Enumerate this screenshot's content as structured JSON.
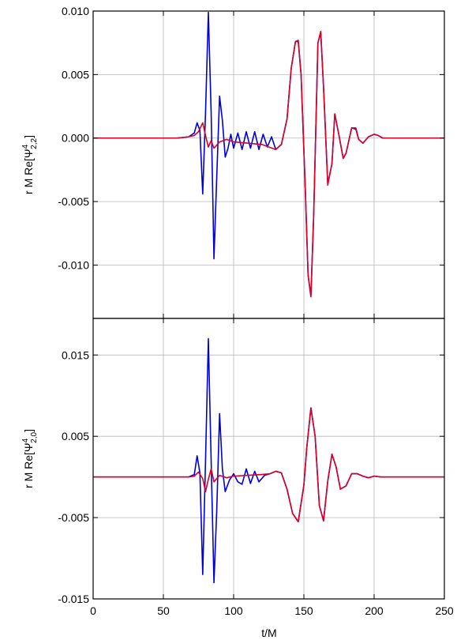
{
  "figure": {
    "xlabel": "t/M",
    "colors": {
      "blue_series": "#0000dd",
      "red_series": "#dd0022",
      "grid": "#b8b8b8",
      "axes": "#000000"
    }
  },
  "chart_data": [
    {
      "type": "line",
      "panel": "top",
      "ylabel": {
        "prefix": "r M Re[Ψ",
        "sup": "4",
        "sub": "2,2",
        "suffix": "]"
      },
      "xlim": [
        0,
        250
      ],
      "ylim": [
        -0.0142,
        0.01
      ],
      "xticks": [
        0,
        50,
        100,
        150,
        200,
        250
      ],
      "yticks": [
        0.01,
        0.005,
        0.0,
        -0.005,
        -0.01
      ],
      "ytick_labels": [
        "0.010",
        "0.005",
        "0.000",
        "-0.005",
        "-0.010"
      ],
      "grid": true,
      "series": [
        {
          "color": "#0000dd",
          "x": [
            0,
            60,
            68,
            72,
            74,
            76,
            78,
            80,
            82,
            84,
            86,
            88,
            90,
            92,
            94,
            96,
            98,
            100,
            103,
            106,
            109,
            112,
            115,
            118,
            121,
            124,
            127,
            130,
            134,
            138,
            141,
            144,
            146,
            148,
            151,
            153,
            155,
            157,
            160,
            162,
            164,
            167,
            170,
            172,
            175,
            178,
            180,
            184,
            187,
            189,
            192,
            196,
            200,
            203,
            206,
            210,
            215,
            220,
            230,
            250
          ],
          "y": [
            0,
            0,
            0.0001,
            0.0004,
            0.0012,
            0.0006,
            -0.0044,
            0.002,
            0.0099,
            0.002,
            -0.0095,
            -0.003,
            0.0033,
            0.0014,
            -0.0015,
            -0.0008,
            0.0003,
            -0.0008,
            0.0004,
            -0.0009,
            0.0005,
            -0.0008,
            0.0005,
            -0.0009,
            0.0003,
            -0.0007,
            0.0001,
            -0.0009,
            -0.0005,
            0.0015,
            0.0055,
            0.0076,
            0.0076,
            0.005,
            -0.004,
            -0.0108,
            -0.0124,
            -0.006,
            0.0075,
            0.0083,
            0.004,
            -0.0036,
            -0.002,
            0.0019,
            0.0002,
            -0.0016,
            -0.0012,
            0.0008,
            0.0007,
            -0.0001,
            -0.0004,
            0.0001,
            0.0003,
            0.0002,
            0,
            0,
            0,
            0,
            0,
            0
          ]
        },
        {
          "color": "#dd0022",
          "x": [
            0,
            60,
            68,
            72,
            75,
            78,
            80,
            82,
            84,
            86,
            90,
            95,
            100,
            110,
            120,
            125,
            130,
            134,
            138,
            141,
            144,
            146,
            148,
            151,
            153,
            155,
            157,
            160,
            162,
            164,
            167,
            170,
            172,
            175,
            178,
            180,
            184,
            187,
            189,
            192,
            196,
            200,
            203,
            206,
            210,
            215,
            220,
            230,
            250
          ],
          "y": [
            0,
            0,
            0.0001,
            0.0002,
            0.0005,
            0.0012,
            0.0002,
            -0.0007,
            -0.0002,
            -0.0008,
            -0.0003,
            -0.0001,
            -0.0003,
            -0.0004,
            -0.0005,
            -0.0007,
            -0.0009,
            -0.0005,
            0.0015,
            0.0055,
            0.0076,
            0.0077,
            0.005,
            -0.004,
            -0.0108,
            -0.0125,
            -0.006,
            0.0075,
            0.0084,
            0.004,
            -0.0037,
            -0.002,
            0.0019,
            0.0002,
            -0.0016,
            -0.0012,
            0.0008,
            0.0008,
            -0.0001,
            -0.0004,
            0.0001,
            0.0003,
            0.0002,
            0,
            0,
            0,
            0,
            0,
            0
          ]
        }
      ]
    },
    {
      "type": "line",
      "panel": "bottom",
      "ylabel": {
        "prefix": "r M Re[Ψ",
        "sup": "4",
        "sub": "2,0",
        "suffix": "]"
      },
      "xlim": [
        0,
        250
      ],
      "ylim": [
        -0.015,
        0.0195
      ],
      "xticks": [
        0,
        50,
        100,
        150,
        200,
        250
      ],
      "xtick_labels": [
        "0",
        "50",
        "100",
        "150",
        "200",
        "250"
      ],
      "yticks": [
        0.015,
        0.005,
        -0.005,
        -0.015
      ],
      "ytick_labels": [
        "0.015",
        "0.005",
        "-0.005",
        "-0.015"
      ],
      "grid": true,
      "series": [
        {
          "color": "#0000dd",
          "x": [
            0,
            60,
            68,
            72,
            74,
            76,
            78,
            80,
            82,
            84,
            86,
            88,
            90,
            92,
            94,
            97,
            100,
            103,
            106,
            109,
            112,
            115,
            118,
            122,
            126,
            130,
            134,
            138,
            142,
            146,
            150,
            152,
            155,
            158,
            161,
            164,
            167,
            170,
            173,
            176,
            180,
            184,
            188,
            192,
            196,
            200,
            205,
            210,
            220,
            250
          ],
          "y": [
            0,
            0,
            0,
            0.0003,
            0.0026,
            0.0005,
            -0.012,
            0.002,
            0.017,
            0.002,
            -0.013,
            -0.004,
            0.0078,
            0.001,
            -0.0018,
            -0.0004,
            0.0004,
            -0.0006,
            -0.0009,
            0.001,
            -0.0008,
            0.0007,
            -0.0006,
            0.0002,
            0.0004,
            0.0007,
            0.0005,
            -0.0015,
            -0.0045,
            -0.0055,
            -0.001,
            0.0035,
            0.0085,
            0.005,
            -0.0035,
            -0.0054,
            -0.0005,
            0.0028,
            0.0012,
            -0.0015,
            -0.0011,
            0.0004,
            0.0004,
            0.0001,
            -0.0001,
            0.0001,
            0,
            0,
            0,
            0
          ]
        },
        {
          "color": "#dd0022",
          "x": [
            0,
            60,
            68,
            72,
            75,
            78,
            80,
            82,
            84,
            86,
            90,
            95,
            100,
            110,
            120,
            126,
            130,
            134,
            138,
            142,
            146,
            150,
            152,
            155,
            158,
            161,
            164,
            167,
            170,
            173,
            176,
            180,
            184,
            188,
            192,
            196,
            200,
            205,
            210,
            220,
            250
          ],
          "y": [
            0,
            0,
            0,
            0.0001,
            0.0006,
            -0.0002,
            -0.0018,
            -0.0003,
            0.001,
            -0.0006,
            0.0002,
            -0.0001,
            0.0001,
            0.0002,
            0.0003,
            0.0004,
            0.0007,
            0.0005,
            -0.0015,
            -0.0045,
            -0.0055,
            -0.001,
            0.0035,
            0.0085,
            0.005,
            -0.0035,
            -0.0054,
            -0.0005,
            0.0028,
            0.0012,
            -0.0015,
            -0.0011,
            0.0004,
            0.0004,
            0.0001,
            -0.0001,
            0.0001,
            0,
            0,
            0,
            0
          ]
        }
      ]
    }
  ]
}
